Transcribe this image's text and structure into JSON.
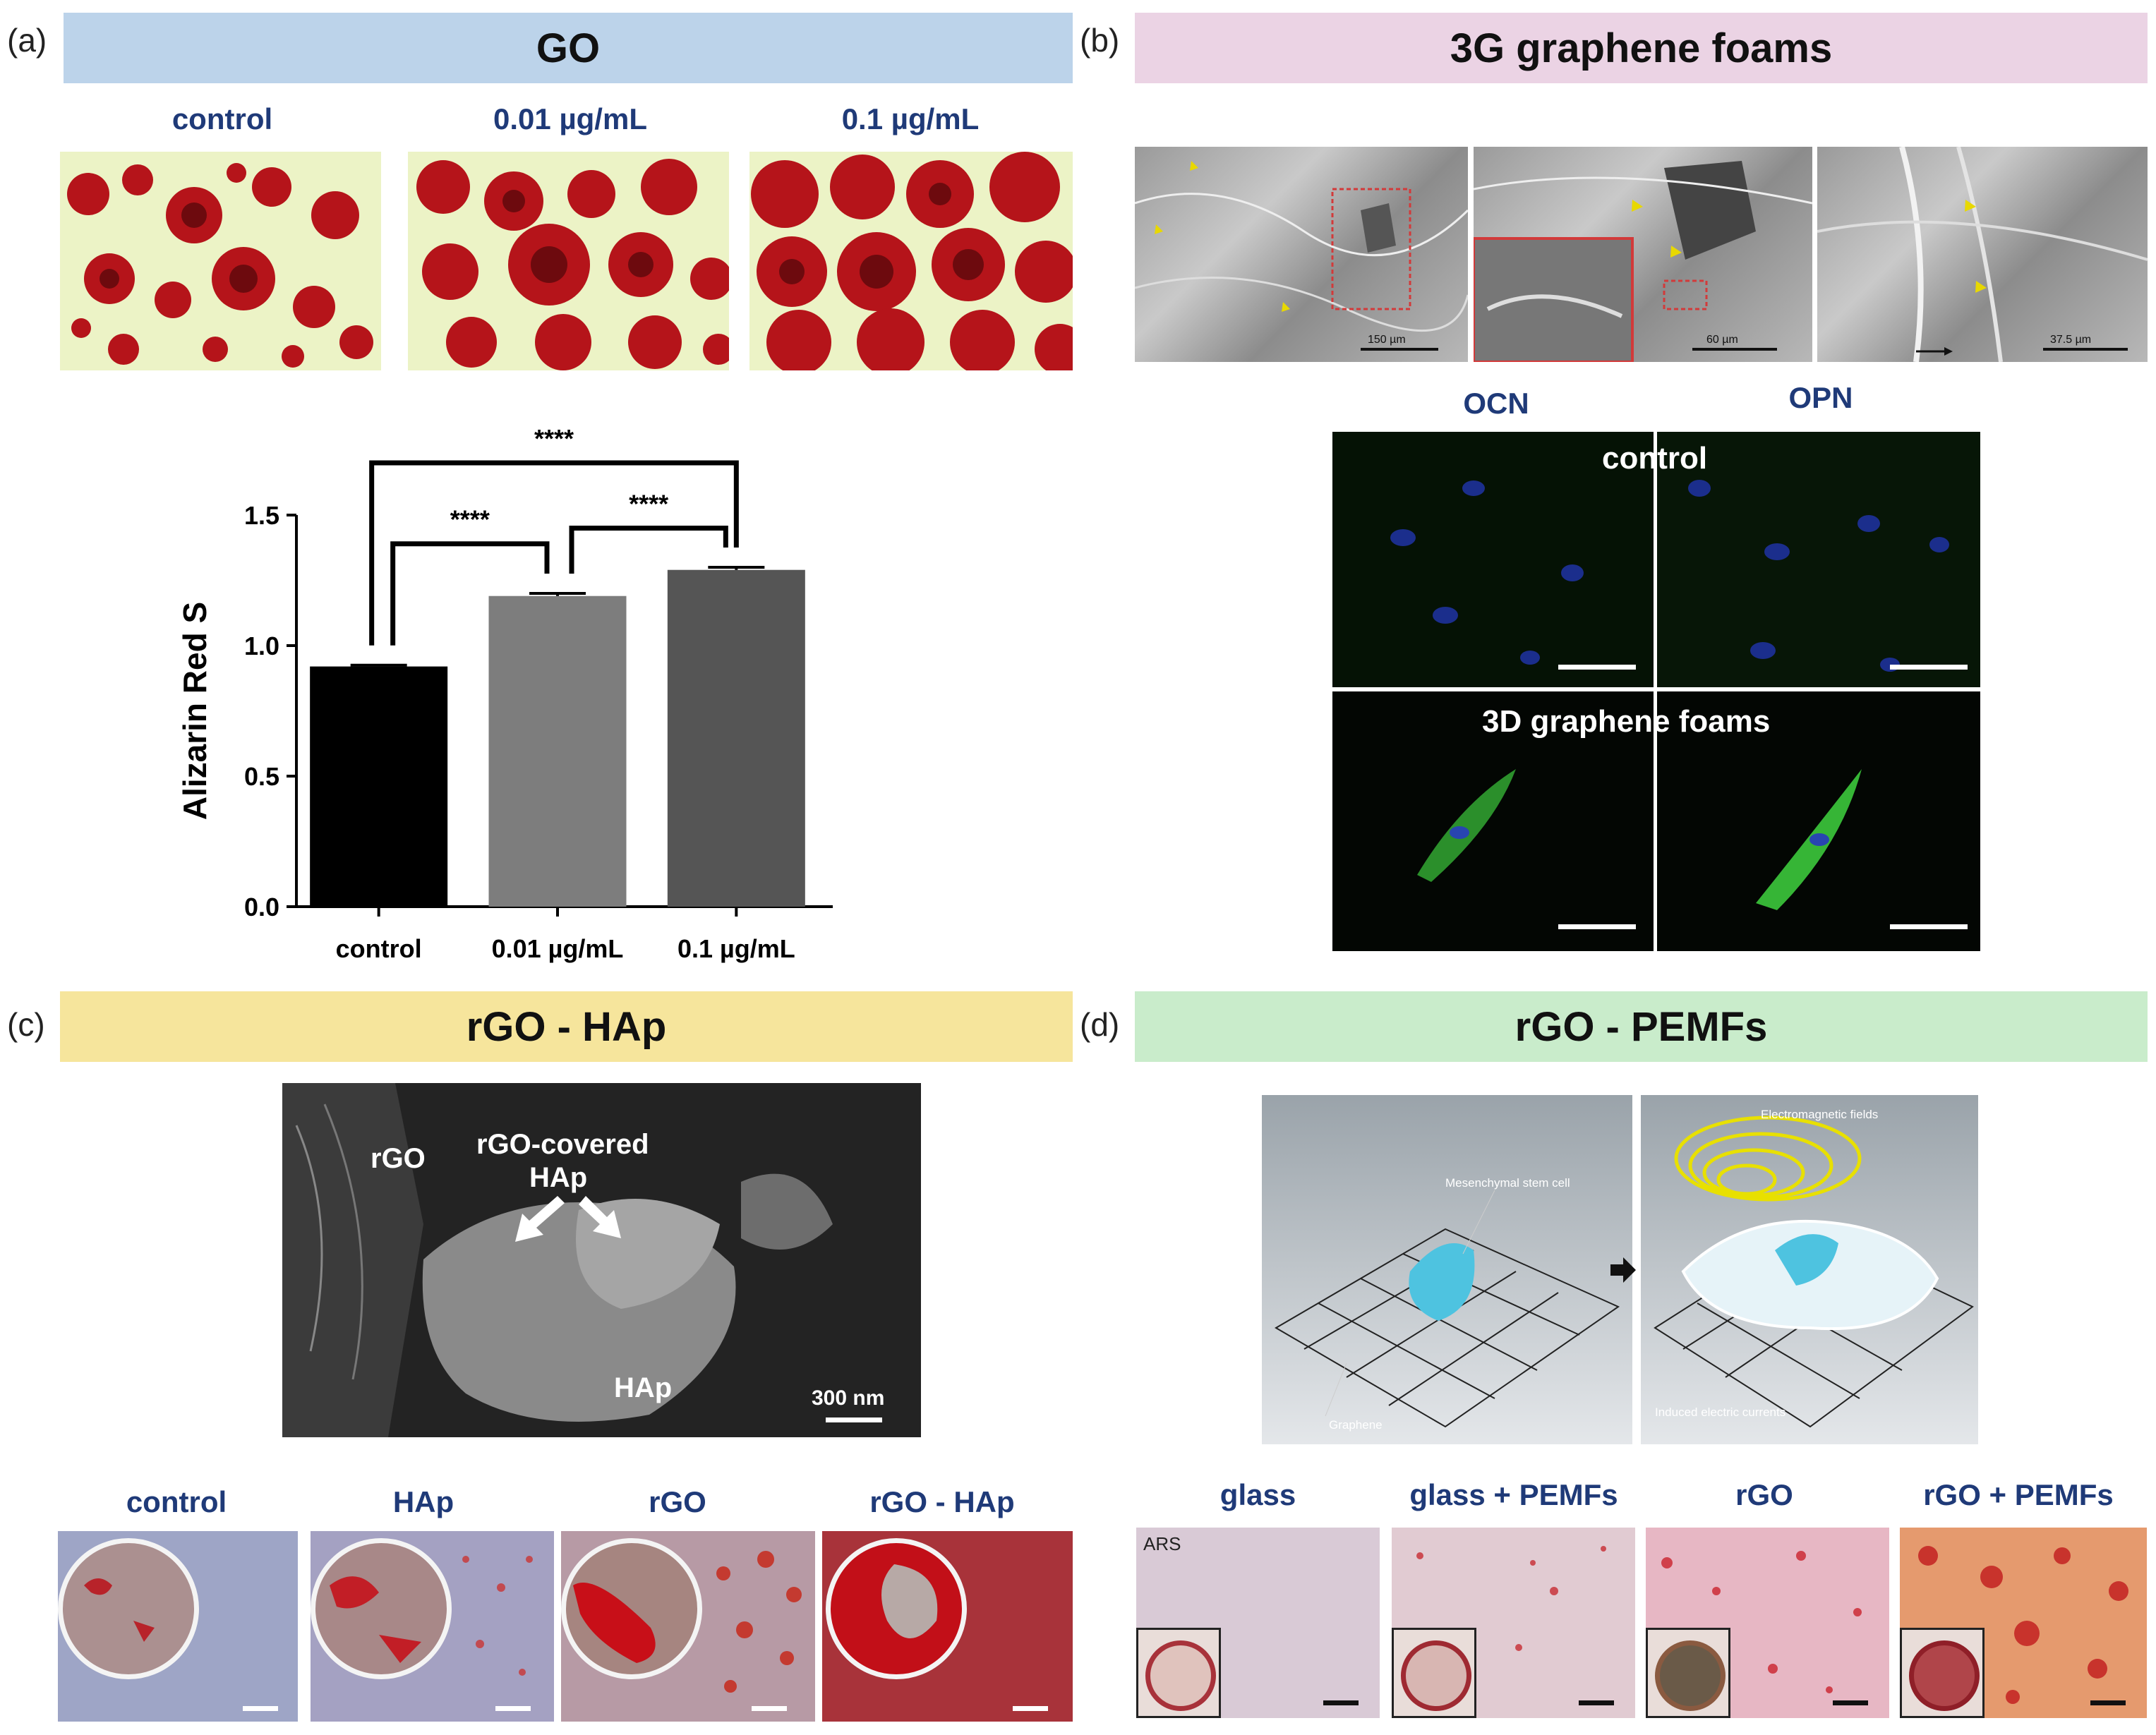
{
  "panels": {
    "a": {
      "letter": "(a)",
      "title": "GO",
      "image_labels": [
        "control",
        "0.01 µg/mL",
        "0.1 µg/mL"
      ],
      "banner_color": "#bcd3ea"
    },
    "b": {
      "letter": "(b)",
      "title": "3G graphene foams",
      "banner_color": "#ebd3e4",
      "sem_scales": [
        "150 µm",
        "60 µm",
        "37.5 µm"
      ],
      "stain_labels": [
        "OCN",
        "OPN"
      ],
      "row_labels": [
        "control",
        "3D graphene  foams"
      ]
    },
    "c": {
      "letter": "(c)",
      "title": "rGO - HAp",
      "banner_color": "#f6e59c",
      "sem_labels": {
        "rgo": "rGO",
        "covered_line1": "rGO-covered",
        "covered_line2": "HAp",
        "hap": "HAp",
        "scale": "300 nm"
      },
      "image_labels": [
        "control",
        "HAp",
        "rGO",
        "rGO - HAp"
      ]
    },
    "d": {
      "letter": "(d)",
      "title": "rGO - PEMFs",
      "banner_color": "#c9eccb",
      "diagram_labels": {
        "stem_cell": "Mesenchymal stem cell",
        "graphene": "Graphene",
        "em_fields": "Electromagnetic fields",
        "currents": "Induced electric currents"
      },
      "image_labels": [
        "glass",
        "glass + PEMFs",
        "rGO",
        "rGO + PEMFs"
      ],
      "ars": "ARS"
    }
  },
  "chart_data": {
    "type": "bar",
    "categories": [
      "control",
      "0.01 µg/mL",
      "0.1 µg/mL"
    ],
    "values": [
      0.92,
      1.19,
      1.29
    ],
    "errors": [
      0.005,
      0.01,
      0.01
    ],
    "colors": [
      "#000000",
      "#7d7d7d",
      "#555555"
    ],
    "ylabel": "Alizarin Red S",
    "ylim": [
      0,
      1.5
    ],
    "yticks": [
      0.0,
      0.5,
      1.0,
      1.5
    ],
    "ytick_labels": [
      "0.0",
      "0.5",
      "1.0",
      "1.5"
    ],
    "significance": [
      {
        "from": 0,
        "to": 1,
        "label": "****"
      },
      {
        "from": 1,
        "to": 2,
        "label": "****"
      },
      {
        "from": 0,
        "to": 2,
        "label": "****"
      }
    ]
  }
}
